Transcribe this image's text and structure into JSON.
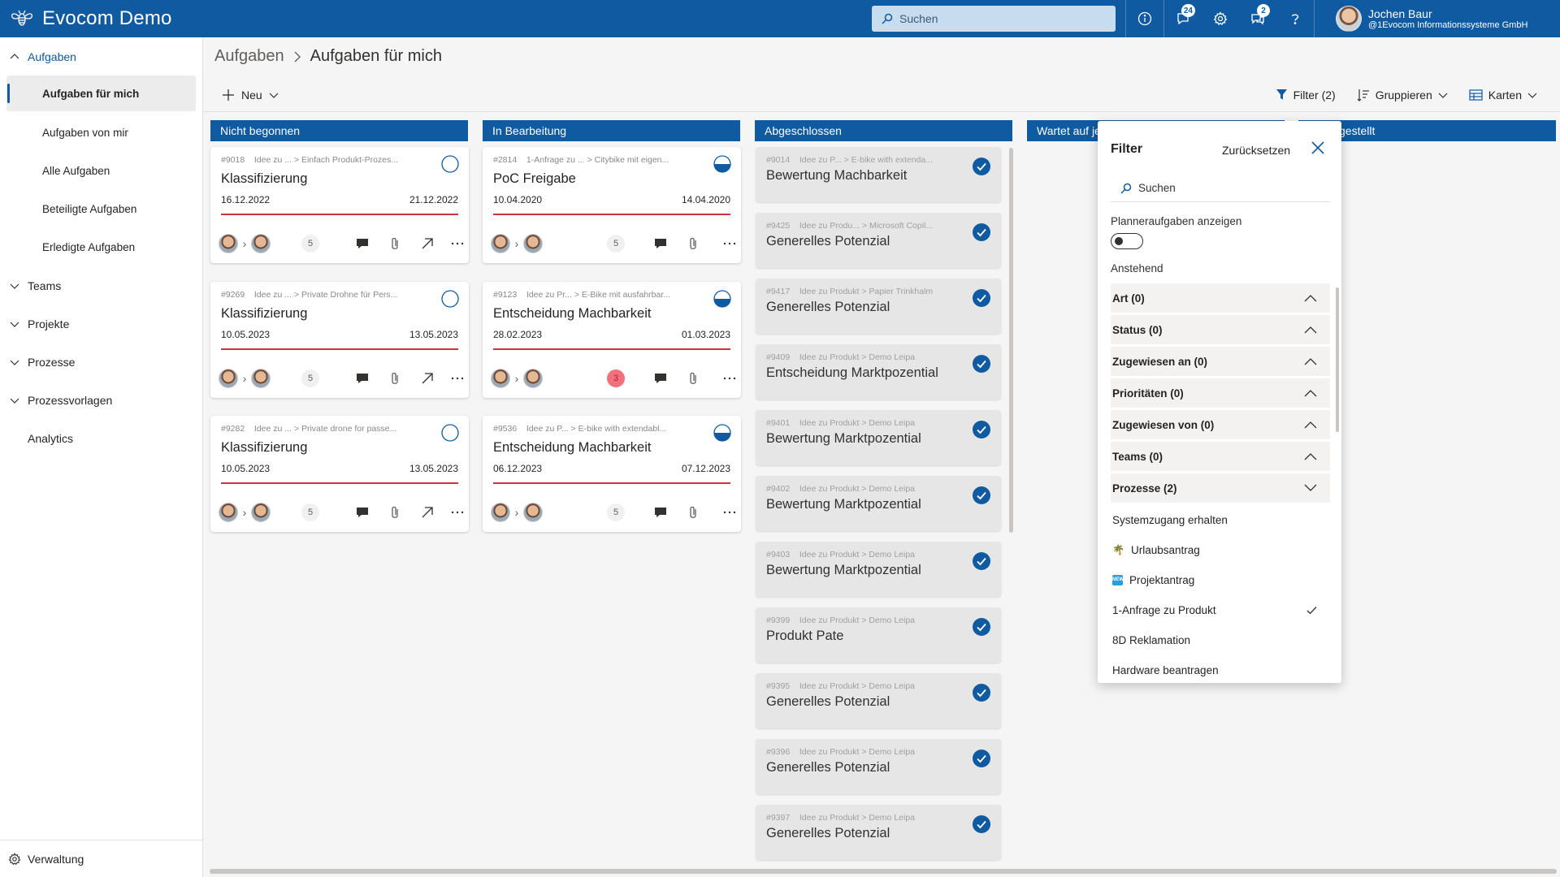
{
  "app": {
    "title": "Evocom Demo"
  },
  "search": {
    "placeholder": "Suchen"
  },
  "topbar": {
    "notifications_count": "24",
    "chat_count": "2"
  },
  "user": {
    "name": "Jochen Baur",
    "org": "@1Evocom Informationssysteme GmbH"
  },
  "sidebar": {
    "groups": [
      {
        "label": "Aufgaben"
      },
      {
        "label": "Teams"
      },
      {
        "label": "Projekte"
      },
      {
        "label": "Prozesse"
      },
      {
        "label": "Prozessvorlagen"
      },
      {
        "label": "Analytics"
      }
    ],
    "items": [
      {
        "label": "Aufgaben für mich"
      },
      {
        "label": "Aufgaben von mir"
      },
      {
        "label": "Alle Aufgaben"
      },
      {
        "label": "Beteiligte Aufgaben"
      },
      {
        "label": "Erledigte Aufgaben"
      }
    ],
    "bottom": "Verwaltung"
  },
  "breadcrumb": {
    "parent": "Aufgaben",
    "current": "Aufgaben für mich"
  },
  "toolbar": {
    "new": "Neu",
    "filter": "Filter (2)",
    "group": "Gruppieren",
    "view": "Karten"
  },
  "columns": [
    "Nicht begonnen",
    "In Bearbeitung",
    "Abgeschlossen",
    "Wartet auf je",
    "gestellt"
  ],
  "cards_not_started": [
    {
      "id": "#9018",
      "path": "Idee zu ...  >  Einfach Produkt-Prozes...",
      "title": "Klassifizierung",
      "start": "16.12.2022",
      "end": "21.12.2022",
      "count": "5"
    },
    {
      "id": "#9269",
      "path": "Idee zu ...  >  Private Drohne für Pers...",
      "title": "Klassifizierung",
      "start": "10.05.2023",
      "end": "13.05.2023",
      "count": "5"
    },
    {
      "id": "#9282",
      "path": "Idee zu ...  >  Private drone for passe...",
      "title": "Klassifizierung",
      "start": "10.05.2023",
      "end": "13.05.2023",
      "count": "5"
    }
  ],
  "cards_in_progress": [
    {
      "id": "#2814",
      "path": "1-Anfrage zu ...  >  Citybike mit eigen...",
      "title": "PoC Freigabe",
      "start": "10.04.2020",
      "end": "14.04.2020",
      "count": "5"
    },
    {
      "id": "#9123",
      "path": "Idee zu Pr...  >  E-Bike mit ausfahrbar...",
      "title": "Entscheidung Machbarkeit",
      "start": "28.02.2023",
      "end": "01.03.2023",
      "count": "3"
    },
    {
      "id": "#9536",
      "path": "Idee zu P...  >  E-bike with extendabl...",
      "title": "Entscheidung Machbarkeit",
      "start": "06.12.2023",
      "end": "07.12.2023",
      "count": "5"
    }
  ],
  "cards_done": [
    {
      "id": "#9014",
      "path": "Idee zu P...  >  E-bike with extenda...",
      "title": "Bewertung Machbarkeit"
    },
    {
      "id": "#9425",
      "path": "Idee zu Produ...  >  Microsoft Copil...",
      "title": "Generelles Potenzial"
    },
    {
      "id": "#9417",
      "path": "Idee zu Produkt  >  Papier Trinkhalm",
      "title": "Generelles Potenzial"
    },
    {
      "id": "#9409",
      "path": "Idee zu Produkt  >  Demo Leipa",
      "title": "Entscheidung Marktpozential"
    },
    {
      "id": "#9401",
      "path": "Idee zu Produkt  >  Demo Leipa",
      "title": "Bewertung Marktpozential"
    },
    {
      "id": "#9402",
      "path": "Idee zu Produkt  >  Demo Leipa",
      "title": "Bewertung Marktpozential"
    },
    {
      "id": "#9403",
      "path": "Idee zu Produkt  >  Demo Leipa",
      "title": "Bewertung Marktpozential"
    },
    {
      "id": "#9399",
      "path": "Idee zu Produkt  >  Demo Leipa",
      "title": "Produkt Pate"
    },
    {
      "id": "#9395",
      "path": "Idee zu Produkt  >  Demo Leipa",
      "title": "Generelles Potenzial"
    },
    {
      "id": "#9396",
      "path": "Idee zu Produkt  >  Demo Leipa",
      "title": "Generelles Potenzial"
    },
    {
      "id": "#9397",
      "path": "Idee zu Produkt  >  Demo Leipa",
      "title": "Generelles Potenzial"
    }
  ],
  "filter": {
    "title": "Filter",
    "reset": "Zurücksetzen",
    "search_placeholder": "Suchen",
    "planner_label": "Planneraufgaben anzeigen",
    "pending_label": "Anstehend",
    "sections": [
      {
        "label": "Art (0)"
      },
      {
        "label": "Status (0)"
      },
      {
        "label": "Zugewiesen an (0)"
      },
      {
        "label": "Prioritäten (0)"
      },
      {
        "label": "Zugewiesen von (0)"
      },
      {
        "label": "Teams (0)"
      },
      {
        "label": "Prozesse (2)"
      }
    ],
    "process_options": [
      {
        "label": "Systemzugang erhalten"
      },
      {
        "label": "Urlaubsantrag"
      },
      {
        "label": "Projektantrag"
      },
      {
        "label": "1-Anfrage zu Produkt",
        "checked": true
      },
      {
        "label": "8D Reklamation"
      },
      {
        "label": "Hardware beantragen"
      }
    ]
  },
  "colors": {
    "brand": "#0f5aa0",
    "due_line": "#d13438"
  }
}
